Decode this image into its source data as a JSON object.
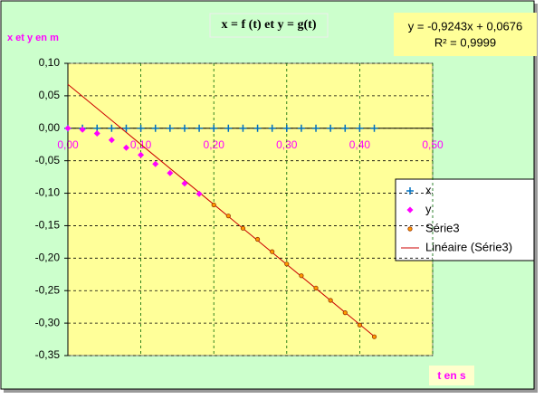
{
  "chart_data": {
    "type": "scatter",
    "title": "x = f (t)  et y = g(t)",
    "y_label": "x et y  en m",
    "x_label": "t en s",
    "annotations": [
      "y = -0,9243x + 0,0676",
      "R² = 0,9999"
    ],
    "x": [
      0,
      0.02,
      0.04,
      0.06,
      0.08,
      0.1,
      0.12,
      0.14,
      0.16,
      0.18,
      0.2,
      0.22,
      0.24,
      0.26,
      0.28,
      0.3,
      0.32,
      0.34,
      0.36,
      0.38,
      0.4,
      0.42
    ],
    "series": [
      {
        "name": "x",
        "color": "#0070c0",
        "marker": "plus",
        "values": [
          0,
          0,
          0,
          0,
          0,
          0,
          0,
          0,
          0,
          0,
          0,
          0,
          0,
          0,
          0,
          0,
          0,
          0,
          0,
          0,
          0,
          0
        ]
      },
      {
        "name": "y",
        "color": "#ff00ff",
        "marker": "diamond",
        "values": [
          0,
          -0.002,
          -0.008,
          -0.018,
          -0.03,
          -0.041,
          -0.055,
          -0.069,
          -0.085,
          -0.101,
          null,
          null,
          null,
          null,
          null,
          null,
          null,
          null,
          null,
          null,
          null,
          null
        ]
      },
      {
        "name": "Série3",
        "color": "#ff9900",
        "marker": "circle",
        "values": [
          null,
          null,
          null,
          null,
          null,
          null,
          null,
          null,
          null,
          null,
          -0.118,
          -0.135,
          -0.154,
          -0.171,
          -0.19,
          -0.209,
          -0.227,
          -0.246,
          -0.265,
          -0.284,
          -0.303,
          -0.321
        ]
      }
    ],
    "trendline": {
      "name": "Linéaire (Série3)",
      "color": "#cc0000",
      "x": [
        0,
        0.42
      ],
      "values": [
        0.0676,
        -0.3206
      ]
    },
    "xlim": [
      0,
      0.5
    ],
    "ylim": [
      -0.35,
      0.1
    ],
    "xticks": [
      {
        "value": 0,
        "label": "0,00"
      },
      {
        "value": 0.1,
        "label": "0,10"
      },
      {
        "value": 0.2,
        "label": "0,20"
      },
      {
        "value": 0.3,
        "label": "0,30"
      },
      {
        "value": 0.4,
        "label": "0,40"
      },
      {
        "value": 0.5,
        "label": "0,50"
      }
    ],
    "yticks": [
      {
        "value": 0.1,
        "label": "0,10"
      },
      {
        "value": 0.05,
        "label": "0,05"
      },
      {
        "value": 0,
        "label": "0,00"
      },
      {
        "value": -0.05,
        "label": "-0,05"
      },
      {
        "value": -0.1,
        "label": "-0,10"
      },
      {
        "value": -0.15,
        "label": "-0,15"
      },
      {
        "value": -0.2,
        "label": "-0,20"
      },
      {
        "value": -0.25,
        "label": "-0,25"
      },
      {
        "value": -0.3,
        "label": "-0,30"
      },
      {
        "value": -0.35,
        "label": "-0,35"
      }
    ],
    "grid": true,
    "legend": "right"
  }
}
